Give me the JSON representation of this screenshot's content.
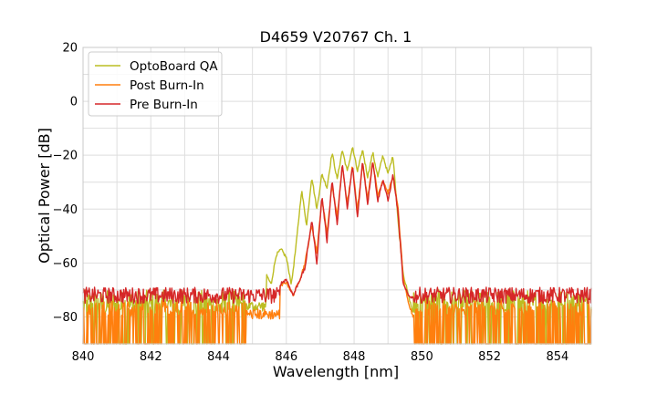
{
  "chart_data": {
    "type": "line",
    "title": "D4659 V20767 Ch. 1",
    "xlabel": "Wavelength [nm]",
    "ylabel": "Optical Power [dB]",
    "xlim": [
      840,
      855
    ],
    "ylim": [
      -90,
      20
    ],
    "xticks": [
      840,
      842,
      844,
      846,
      848,
      850,
      852,
      854
    ],
    "yticks": [
      -80,
      -60,
      -40,
      -20,
      0,
      20
    ],
    "xtick_labels": [
      "840",
      "842",
      "844",
      "846",
      "848",
      "850",
      "852",
      "854"
    ],
    "ytick_labels": [
      "−80",
      "−60",
      "−40",
      "−20",
      "0",
      "20"
    ],
    "grid": true,
    "legend_position": "top-left",
    "series": [
      {
        "name": "OptoBoard QA",
        "color": "#bcbd22",
        "noise_floor": -76,
        "x": [
          845.4,
          845.55,
          845.7,
          845.85,
          846.0,
          846.15,
          846.3,
          846.45,
          846.6,
          846.75,
          846.9,
          847.05,
          847.2,
          847.35,
          847.5,
          847.65,
          847.8,
          847.95,
          848.1,
          848.25,
          848.4,
          848.55,
          848.7,
          848.85,
          849.0,
          849.15,
          849.3,
          849.45,
          849.6,
          849.75
        ],
        "values": [
          -64,
          -68,
          -57,
          -55,
          -58,
          -68,
          -52,
          -33,
          -46,
          -28,
          -40,
          -27,
          -32,
          -19,
          -29,
          -18,
          -26,
          -17,
          -26,
          -18,
          -28,
          -19,
          -28,
          -20,
          -27,
          -20,
          -45,
          -64,
          -72,
          -79
        ]
      },
      {
        "name": "Post Burn-In",
        "color": "#ff7f0e",
        "noise_floor": -79,
        "x": [
          845.8,
          846.0,
          846.2,
          846.4,
          846.55,
          846.75,
          846.9,
          847.05,
          847.2,
          847.35,
          847.5,
          847.65,
          847.8,
          847.95,
          848.1,
          848.25,
          848.4,
          848.55,
          848.7,
          848.85,
          849.0,
          849.15,
          849.3,
          849.45,
          849.6,
          849.75
        ],
        "values": [
          -69,
          -67,
          -72,
          -66,
          -60,
          -46,
          -56,
          -36,
          -49,
          -31,
          -43,
          -24,
          -38,
          -24,
          -40,
          -23,
          -36,
          -22,
          -35,
          -29,
          -34,
          -28,
          -40,
          -66,
          -75,
          -80
        ]
      },
      {
        "name": "Pre Burn-In",
        "color": "#d62728",
        "noise_floor": -72,
        "x": [
          845.8,
          846.0,
          846.2,
          846.4,
          846.55,
          846.75,
          846.9,
          847.05,
          847.2,
          847.35,
          847.5,
          847.65,
          847.8,
          847.95,
          848.1,
          848.25,
          848.4,
          848.55,
          848.7,
          848.85,
          849.0,
          849.15,
          849.3,
          849.45,
          849.6,
          849.75
        ],
        "values": [
          -68,
          -66,
          -72,
          -66,
          -62,
          -44,
          -60,
          -35,
          -52,
          -29,
          -46,
          -23,
          -40,
          -24,
          -43,
          -22,
          -38,
          -22,
          -37,
          -29,
          -37,
          -27,
          -42,
          -68,
          -72,
          -73
        ]
      }
    ]
  }
}
